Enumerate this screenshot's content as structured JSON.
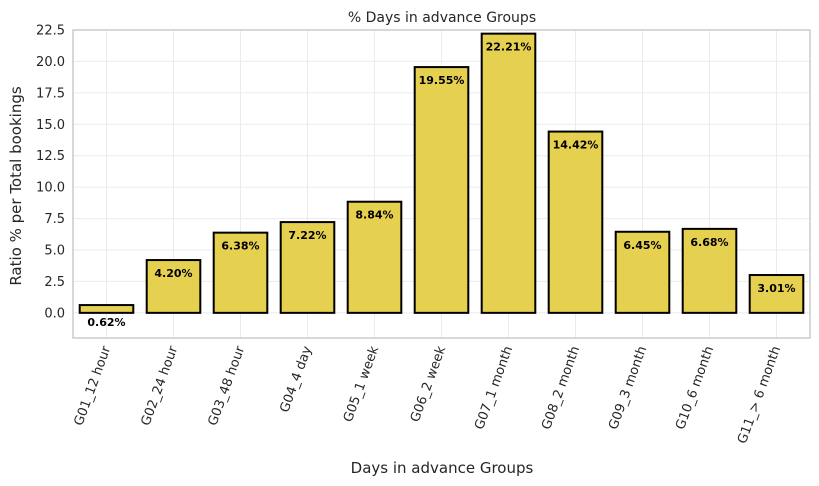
{
  "chart_data": {
    "type": "bar",
    "title": "% Days in advance Groups",
    "xlabel": "Days in advance Groups",
    "ylabel": "Ratio % per Total bookings",
    "categories": [
      "G01_12 hour",
      "G02_24 hour",
      "G03_48 hour",
      "G04_4 day",
      "G05_1 week",
      "G06_2 week",
      "G07_1 month",
      "G08_2 month",
      "G09_3 month",
      "G10_6 month",
      "G11_> 6 month"
    ],
    "values": [
      0.62,
      4.2,
      6.38,
      7.22,
      8.84,
      19.55,
      22.21,
      14.42,
      6.45,
      6.68,
      3.01
    ],
    "data_labels": [
      "0.62%",
      "4.20%",
      "6.38%",
      "7.22%",
      "8.84%",
      "19.55%",
      "22.21%",
      "14.42%",
      "6.45%",
      "6.68%",
      "3.01%"
    ],
    "yticks": [
      "0.0",
      "2.5",
      "5.0",
      "7.5",
      "10.0",
      "12.5",
      "15.0",
      "17.5",
      "20.0",
      "22.5"
    ],
    "ylim": [
      -2,
      22.5
    ],
    "grid": true,
    "bar_color": "#e6d050",
    "edge_color": "#000000",
    "grid_color": "#ebebeb",
    "frame_color": "#cccccc"
  }
}
